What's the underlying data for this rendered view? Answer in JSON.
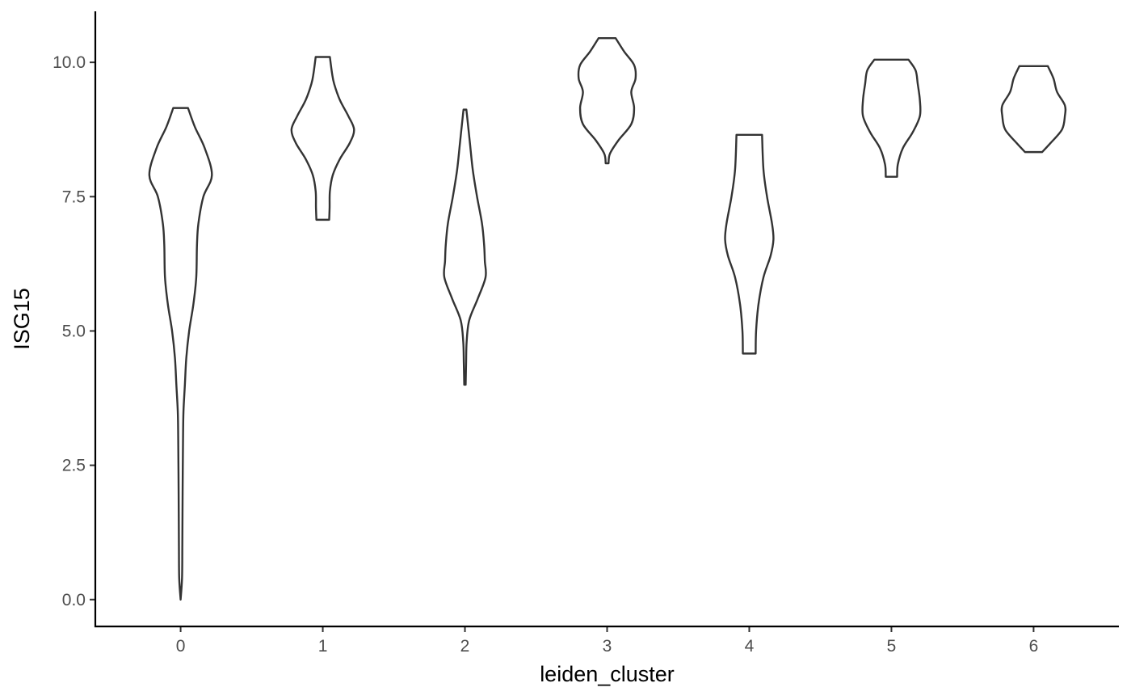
{
  "chart_data": {
    "type": "violin",
    "xlabel": "leiden_cluster",
    "ylabel": "ISG15",
    "categories": [
      "0",
      "1",
      "2",
      "3",
      "4",
      "5",
      "6"
    ],
    "ylim": [
      -0.5,
      10.95
    ],
    "yticks": [
      0.0,
      2.5,
      5.0,
      7.5,
      10.0
    ],
    "ytick_labels": [
      "0.0",
      "2.5",
      "5.0",
      "7.5",
      "10.0"
    ],
    "grid": false,
    "legend": "none",
    "stroke_color": "#333333",
    "max_half_width": 0.22,
    "violins": [
      {
        "category": "0",
        "min": 0.0,
        "max": 9.15,
        "profile": [
          [
            0.0,
            0.0
          ],
          [
            0.4,
            0.01
          ],
          [
            1.0,
            0.012
          ],
          [
            2.0,
            0.014
          ],
          [
            3.0,
            0.017
          ],
          [
            3.5,
            0.02
          ],
          [
            4.0,
            0.03
          ],
          [
            4.5,
            0.04
          ],
          [
            5.0,
            0.06
          ],
          [
            5.5,
            0.09
          ],
          [
            6.0,
            0.11
          ],
          [
            6.6,
            0.115
          ],
          [
            7.0,
            0.125
          ],
          [
            7.5,
            0.16
          ],
          [
            7.9,
            0.22
          ],
          [
            8.4,
            0.17
          ],
          [
            8.8,
            0.1
          ],
          [
            9.15,
            0.052
          ]
        ]
      },
      {
        "category": "1",
        "min": 7.07,
        "max": 10.1,
        "profile": [
          [
            7.07,
            0.045
          ],
          [
            7.3,
            0.048
          ],
          [
            7.6,
            0.05
          ],
          [
            7.9,
            0.07
          ],
          [
            8.2,
            0.12
          ],
          [
            8.5,
            0.19
          ],
          [
            8.75,
            0.22
          ],
          [
            9.0,
            0.18
          ],
          [
            9.3,
            0.12
          ],
          [
            9.6,
            0.08
          ],
          [
            9.8,
            0.065
          ],
          [
            10.1,
            0.05
          ]
        ]
      },
      {
        "category": "2",
        "min": 4.0,
        "max": 9.12,
        "profile": [
          [
            4.0,
            0.005
          ],
          [
            4.4,
            0.008
          ],
          [
            4.8,
            0.012
          ],
          [
            5.2,
            0.03
          ],
          [
            5.6,
            0.09
          ],
          [
            6.0,
            0.145
          ],
          [
            6.3,
            0.14
          ],
          [
            6.6,
            0.135
          ],
          [
            7.0,
            0.12
          ],
          [
            7.5,
            0.085
          ],
          [
            8.0,
            0.055
          ],
          [
            8.5,
            0.035
          ],
          [
            9.0,
            0.015
          ],
          [
            9.12,
            0.01
          ]
        ]
      },
      {
        "category": "3",
        "min": 8.12,
        "max": 10.45,
        "profile": [
          [
            8.12,
            0.01
          ],
          [
            8.3,
            0.02
          ],
          [
            8.55,
            0.08
          ],
          [
            8.85,
            0.17
          ],
          [
            9.15,
            0.19
          ],
          [
            9.45,
            0.17
          ],
          [
            9.7,
            0.2
          ],
          [
            9.95,
            0.19
          ],
          [
            10.2,
            0.12
          ],
          [
            10.45,
            0.06
          ]
        ]
      },
      {
        "category": "4",
        "min": 4.58,
        "max": 8.65,
        "profile": [
          [
            4.58,
            0.045
          ],
          [
            5.0,
            0.048
          ],
          [
            5.5,
            0.065
          ],
          [
            6.0,
            0.1
          ],
          [
            6.4,
            0.15
          ],
          [
            6.7,
            0.17
          ],
          [
            7.0,
            0.16
          ],
          [
            7.5,
            0.125
          ],
          [
            8.0,
            0.1
          ],
          [
            8.65,
            0.09
          ]
        ]
      },
      {
        "category": "5",
        "min": 7.87,
        "max": 10.05,
        "profile": [
          [
            7.87,
            0.04
          ],
          [
            8.1,
            0.045
          ],
          [
            8.4,
            0.08
          ],
          [
            8.7,
            0.15
          ],
          [
            9.0,
            0.2
          ],
          [
            9.3,
            0.2
          ],
          [
            9.6,
            0.185
          ],
          [
            9.85,
            0.17
          ],
          [
            10.05,
            0.12
          ]
        ]
      },
      {
        "category": "6",
        "min": 8.33,
        "max": 9.93,
        "profile": [
          [
            8.33,
            0.06
          ],
          [
            8.5,
            0.12
          ],
          [
            8.75,
            0.2
          ],
          [
            9.0,
            0.22
          ],
          [
            9.2,
            0.22
          ],
          [
            9.45,
            0.165
          ],
          [
            9.7,
            0.14
          ],
          [
            9.93,
            0.1
          ]
        ]
      }
    ]
  }
}
